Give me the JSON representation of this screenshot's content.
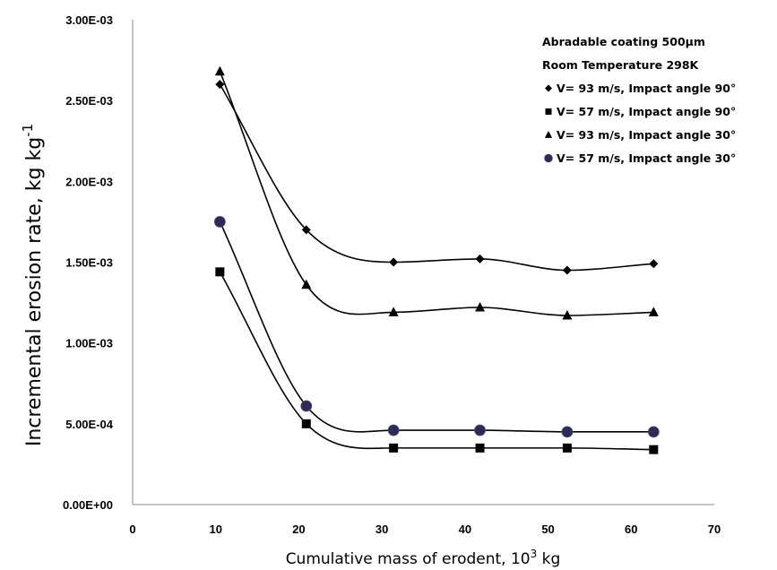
{
  "chart_data": {
    "type": "scatter",
    "title": "",
    "xlabel": "Cumulative mass of erodent, 10",
    "xlabel_sup": "3",
    "xlabel_tail": " kg",
    "ylabel": "Incremental erosion rate, kg kg",
    "ylabel_sup": "-1",
    "xlim": [
      0,
      70
    ],
    "ylim": [
      0,
      0.003
    ],
    "x_ticks": [
      "0",
      "10",
      "20",
      "30",
      "40",
      "50",
      "60",
      "70"
    ],
    "y_ticks": [
      "0.00E+00",
      "5.00E-04",
      "1.00E-03",
      "1.50E-03",
      "2.00E-03",
      "2.50E-03",
      "3.00E-03"
    ],
    "grid": false,
    "legend_position": "top-right",
    "legend_header": [
      "Abradable coating 500µm",
      "Room Temperature 298K"
    ],
    "series": [
      {
        "name": "V= 93 m/s, Impact angle 90°",
        "marker": "diamond",
        "color": "#000000",
        "x": [
          10.5,
          20.9,
          31.4,
          41.8,
          52.3,
          62.7
        ],
        "y": [
          0.0026,
          0.0017,
          0.0015,
          0.00152,
          0.00145,
          0.00149
        ]
      },
      {
        "name": "V= 57 m/s, Impact angle 90°",
        "marker": "square",
        "color": "#000000",
        "x": [
          10.5,
          20.9,
          31.4,
          41.8,
          52.3,
          62.7
        ],
        "y": [
          0.00144,
          0.0005,
          0.00035,
          0.00035,
          0.00035,
          0.00034
        ]
      },
      {
        "name": "V= 93 m/s, Impact angle 30°",
        "marker": "triangle",
        "color": "#000000",
        "x": [
          10.5,
          20.9,
          31.4,
          41.8,
          52.3,
          62.7
        ],
        "y": [
          0.00268,
          0.00136,
          0.00119,
          0.00122,
          0.00117,
          0.00119
        ]
      },
      {
        "name": "V= 57 m/s, Impact angle 30°",
        "marker": "circle",
        "color": "#2b2a5c",
        "x": [
          10.5,
          20.9,
          31.4,
          41.8,
          52.3,
          62.7
        ],
        "y": [
          0.00175,
          0.00061,
          0.00046,
          0.00046,
          0.00045,
          0.00045
        ]
      }
    ]
  }
}
